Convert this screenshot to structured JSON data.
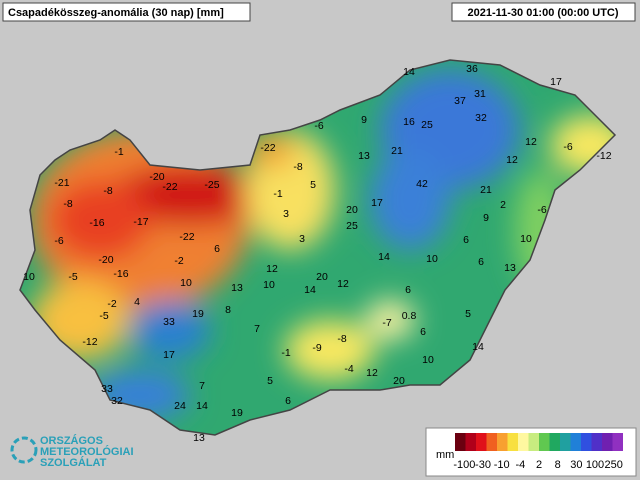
{
  "header": {
    "title": "Csapadékösszeg-anomália (30 nap) [mm]",
    "timestamp": "2021-11-30 01:00 (00:00 UTC)"
  },
  "stations": [
    14,
    36,
    17,
    37,
    31,
    32,
    16,
    25,
    9,
    -6,
    -22,
    12,
    -6,
    -12,
    13,
    21,
    12,
    -8,
    -1,
    5,
    -21,
    -20,
    -22,
    -25,
    -8,
    -1,
    42,
    21,
    2,
    -6,
    -8,
    20,
    17,
    3,
    9,
    -16,
    -17,
    25,
    -6,
    -22,
    3,
    6,
    10,
    6,
    14,
    10,
    6,
    -20,
    -2,
    12,
    13,
    -16,
    10,
    -5,
    20,
    10,
    13,
    10,
    12,
    14,
    6,
    4,
    -2,
    19,
    8,
    -5,
    5,
    33,
    -7,
    0.8,
    7,
    6,
    -12,
    -8,
    -1,
    -9,
    14,
    17,
    10,
    -4,
    12,
    5,
    20,
    7,
    33,
    6,
    32,
    24,
    14,
    19,
    13
  ],
  "legend": {
    "unit": "mm",
    "labels": [
      "-100",
      "-30",
      "-10",
      "-4",
      "2",
      "8",
      "30",
      "100",
      "250"
    ],
    "colors": [
      "#6b0010",
      "#b0001a",
      "#e0101a",
      "#f06020",
      "#f8a030",
      "#f8e040",
      "#fff8a0",
      "#c8ec80",
      "#60c850",
      "#20a860",
      "#20a0a0",
      "#2080d8",
      "#3050e0",
      "#5030c8",
      "#7020b0",
      "#9030c0"
    ]
  },
  "logo": {
    "line1": "ORSZÁGOS",
    "line2": "METEOROLÓGIAI",
    "line3": "SZOLGÁLAT"
  }
}
